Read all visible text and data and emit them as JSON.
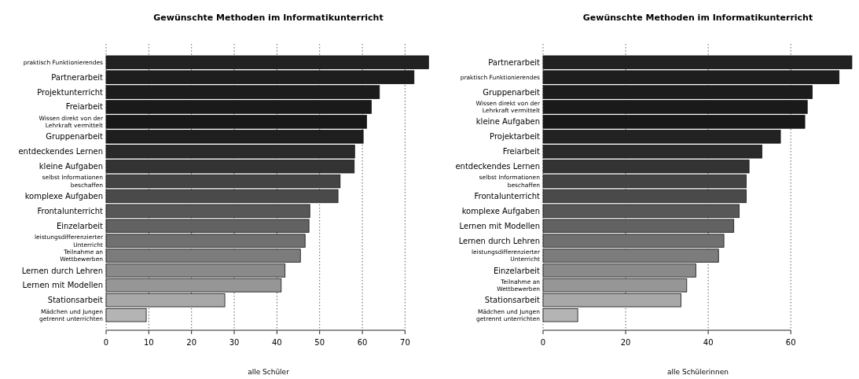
{
  "chart_data": [
    {
      "type": "bar",
      "orientation": "horizontal",
      "title": "Gewünschte Methoden im Informatikunterricht",
      "xlabel": "alle Schüler",
      "grid": "x",
      "categories": [
        "praktisch Funktionierendes",
        "Partnerarbeit",
        "Projektunterricht",
        "Freiarbeit",
        "Wissen direkt von der\nLehrkraft vermittelt",
        "Gruppenarbeit",
        "entdeckendes Lernen",
        "kleine Aufgaben",
        "selbst Informationen\nbeschaffen",
        "komplexe Aufgaben",
        "Frontalunterricht",
        "Einzelarbeit",
        "leistungsdifferenzierter\nUnterricht",
        "Teilnahme an\nWettbewerben",
        "Lernen durch Lehren",
        "Lernen mit Modellen",
        "Stationsarbeit",
        "Mädchen und Jungen\ngetrennt unterrichten"
      ],
      "values": [
        75.5,
        72.1,
        64.0,
        62.1,
        61.0,
        60.2,
        58.2,
        58.1,
        54.8,
        54.3,
        47.7,
        47.5,
        46.6,
        45.5,
        41.9,
        41.0,
        27.8,
        9.4
      ],
      "colors": [
        "#222222",
        "#1e1e1e",
        "#1c1c1c",
        "#1a1a1a",
        "#181818",
        "#1e1e1e",
        "#2a2a2a",
        "#333333",
        "#444444",
        "#4a4a4a",
        "#575757",
        "#626262",
        "#707070",
        "#7c7c7c",
        "#8a8a8a",
        "#969696",
        "#a8a8a8",
        "#b4b4b4"
      ],
      "xlim": [
        0,
        76
      ],
      "xticks": [
        0,
        10,
        20,
        30,
        40,
        50,
        60,
        70
      ]
    },
    {
      "type": "bar",
      "orientation": "horizontal",
      "title": "Gewünschte Methoden im Informatikunterricht",
      "xlabel": "alle Schülerinnen",
      "grid": "x",
      "categories": [
        "Partnerarbeit",
        "praktisch Funktionierendes",
        "Gruppenarbeit",
        "Wissen direkt von der\nLehrkraft vermittelt",
        "kleine Aufgaben",
        "Projektarbeit",
        "Freiarbeit",
        "entdeckendes Lernen",
        "selbst Informationen\nbeschaffen",
        "Frontalunterricht",
        "komplexe Aufgaben",
        "Lernen mit Modellen",
        "Lernen durch Lehren",
        "leistungsdifferenzierter\nUnterricht",
        "Einzelarbeit",
        "Teilnahme an\nWettbewerben",
        "Stationsarbeit",
        "Mädchen und Jungen\ngetrennt unterrichten"
      ],
      "values": [
        74.8,
        71.7,
        65.2,
        64.0,
        63.4,
        57.5,
        53.0,
        49.9,
        49.2,
        49.2,
        47.5,
        46.2,
        43.8,
        42.5,
        37.0,
        34.8,
        33.4,
        8.4
      ],
      "colors": [
        "#222222",
        "#1e1e1e",
        "#1c1c1c",
        "#1a1a1a",
        "#181818",
        "#222222",
        "#2a2a2a",
        "#333333",
        "#444444",
        "#4a4a4a",
        "#575757",
        "#626262",
        "#707070",
        "#7c7c7c",
        "#8a8a8a",
        "#969696",
        "#a8a8a8",
        "#b4b4b4"
      ],
      "xlim": [
        0,
        75
      ],
      "xticks": [
        0,
        20,
        40,
        60
      ]
    }
  ]
}
